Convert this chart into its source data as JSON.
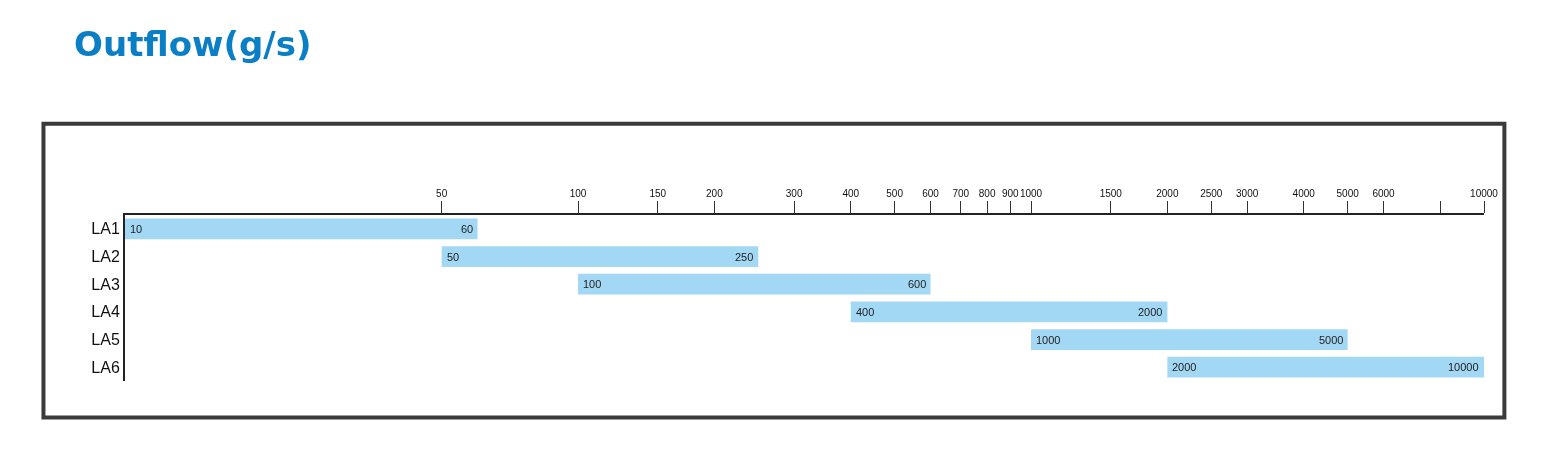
{
  "chart_data": {
    "type": "bar",
    "orientation": "horizontal",
    "title": "Outflow(g/s)",
    "categories": [
      "LA1",
      "LA2",
      "LA3",
      "LA4",
      "LA5",
      "LA6"
    ],
    "base": [
      10,
      50,
      100,
      400,
      1000,
      2000
    ],
    "values": [
      50,
      200,
      500,
      1600,
      4000,
      8000
    ],
    "color": "#a3d8f5",
    "xlim": [
      10,
      10000
    ],
    "log": "x",
    "xticks": [
      50,
      100,
      150,
      200,
      300,
      400,
      500,
      600,
      700,
      800,
      900,
      1000,
      1500,
      2000,
      2500,
      3000,
      4000,
      5000,
      6000,
      {
        "value": 8000,
        "label": null
      },
      10000
    ],
    "grid": false,
    "annotations": [
      {
        "text": "10",
        "x": 10,
        "y": "LA1"
      },
      {
        "text": "60",
        "x": 60,
        "y": "LA1"
      },
      {
        "text": "50",
        "x": 50,
        "y": "LA2"
      },
      {
        "text": "250",
        "x": 250,
        "y": "LA2"
      },
      {
        "text": "100",
        "x": 100,
        "y": "LA3"
      },
      {
        "text": "600",
        "x": 600,
        "y": "LA3"
      },
      {
        "text": "400",
        "x": 400,
        "y": "LA4"
      },
      {
        "text": "2000",
        "x": 2000,
        "y": "LA4"
      },
      {
        "text": "1000",
        "x": 1000,
        "y": "LA5"
      },
      {
        "text": "5000",
        "x": 5000,
        "y": "LA5"
      },
      {
        "text": "2000",
        "x": 2000,
        "y": "LA6"
      },
      {
        "text": "10000",
        "x": 10000,
        "y": "LA6"
      }
    ]
  }
}
